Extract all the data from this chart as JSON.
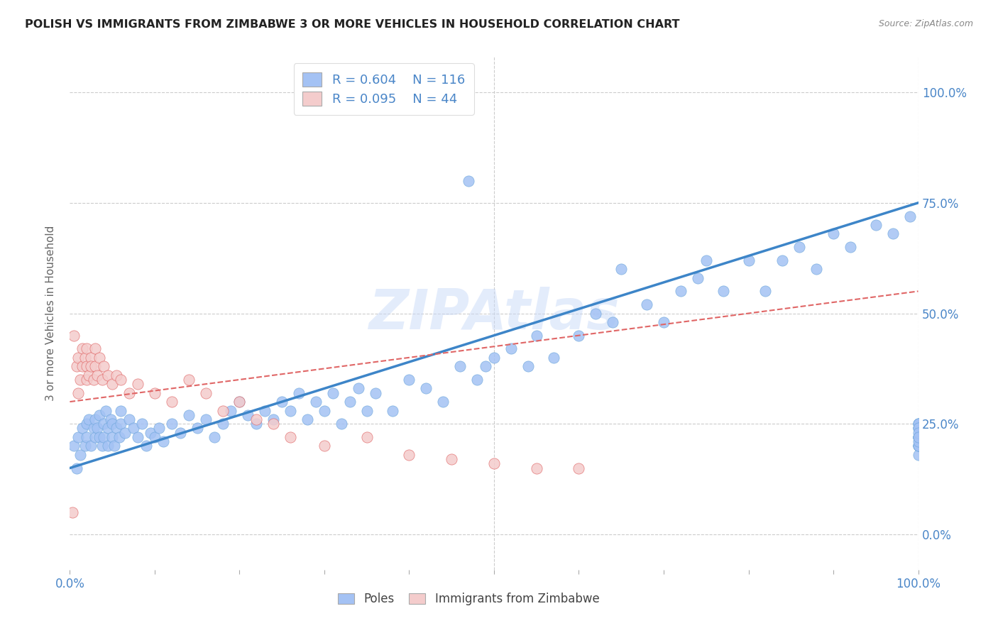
{
  "title": "POLISH VS IMMIGRANTS FROM ZIMBABWE 3 OR MORE VEHICLES IN HOUSEHOLD CORRELATION CHART",
  "source": "Source: ZipAtlas.com",
  "ylabel": "3 or more Vehicles in Household",
  "xlim": [
    0,
    100
  ],
  "ylim": [
    -8,
    108
  ],
  "x_ticks": [
    0,
    10,
    20,
    30,
    40,
    50,
    60,
    70,
    80,
    90,
    100
  ],
  "x_tick_labels_show": [
    "0.0%",
    "",
    "",
    "",
    "",
    "",
    "",
    "",
    "",
    "",
    "100.0%"
  ],
  "y_ticks_right": [
    0,
    25,
    50,
    75,
    100
  ],
  "y_tick_labels_right": [
    "0.0%",
    "25.0%",
    "50.0%",
    "75.0%",
    "100.0%"
  ],
  "poles_r": "0.604",
  "poles_n": "116",
  "zimbabwe_r": "0.095",
  "zimbabwe_n": "44",
  "poles_color": "#a4c2f4",
  "zimbabwe_color": "#f4cccc",
  "poles_edge": "#6fa8dc",
  "zimbabwe_edge": "#e06666",
  "regression_poles_color": "#3d85c8",
  "regression_zimbabwe_color": "#e06666",
  "watermark_color": "#c9daf8",
  "background_color": "#ffffff",
  "grid_color": "#cccccc",
  "poles_reg_x0": 0,
  "poles_reg_y0": 15,
  "poles_reg_x1": 100,
  "poles_reg_y1": 75,
  "zimb_reg_x0": 0,
  "zimb_reg_y0": 30,
  "zimb_reg_x1": 100,
  "zimb_reg_y1": 55,
  "poles_x": [
    0.5,
    0.8,
    1.0,
    1.2,
    1.5,
    1.8,
    2.0,
    2.0,
    2.2,
    2.5,
    2.8,
    3.0,
    3.0,
    3.2,
    3.5,
    3.5,
    3.8,
    4.0,
    4.0,
    4.2,
    4.5,
    4.5,
    4.8,
    5.0,
    5.0,
    5.2,
    5.5,
    5.8,
    6.0,
    6.0,
    6.5,
    7.0,
    7.5,
    8.0,
    8.5,
    9.0,
    9.5,
    10.0,
    10.5,
    11.0,
    12.0,
    13.0,
    14.0,
    15.0,
    16.0,
    17.0,
    18.0,
    19.0,
    20.0,
    21.0,
    22.0,
    23.0,
    24.0,
    25.0,
    26.0,
    27.0,
    28.0,
    29.0,
    30.0,
    31.0,
    32.0,
    33.0,
    34.0,
    35.0,
    36.0,
    38.0,
    40.0,
    42.0,
    44.0,
    46.0,
    47.0,
    48.0,
    49.0,
    50.0,
    52.0,
    54.0,
    55.0,
    57.0,
    60.0,
    62.0,
    64.0,
    65.0,
    68.0,
    70.0,
    72.0,
    74.0,
    75.0,
    77.0,
    80.0,
    82.0,
    84.0,
    86.0,
    88.0,
    90.0,
    92.0,
    95.0,
    97.0,
    99.0,
    100.0,
    100.0,
    100.0,
    100.0,
    100.0,
    100.0,
    100.0,
    100.0,
    100.0,
    100.0,
    100.0,
    100.0,
    100.0,
    100.0,
    100.0,
    100.0,
    100.0,
    100.0
  ],
  "poles_y": [
    20,
    15,
    22,
    18,
    24,
    20,
    25,
    22,
    26,
    20,
    24,
    22,
    26,
    24,
    22,
    27,
    20,
    25,
    22,
    28,
    20,
    24,
    26,
    22,
    25,
    20,
    24,
    22,
    25,
    28,
    23,
    26,
    24,
    22,
    25,
    20,
    23,
    22,
    24,
    21,
    25,
    23,
    27,
    24,
    26,
    22,
    25,
    28,
    30,
    27,
    25,
    28,
    26,
    30,
    28,
    32,
    26,
    30,
    28,
    32,
    25,
    30,
    33,
    28,
    32,
    28,
    35,
    33,
    30,
    38,
    80,
    35,
    38,
    40,
    42,
    38,
    45,
    40,
    45,
    50,
    48,
    60,
    52,
    48,
    55,
    58,
    62,
    55,
    62,
    55,
    62,
    65,
    60,
    68,
    65,
    70,
    68,
    72,
    25,
    20,
    22,
    25,
    18,
    20,
    22,
    24,
    20,
    22,
    24,
    25,
    22,
    24,
    20,
    21,
    23,
    22
  ],
  "zimb_x": [
    0.3,
    0.5,
    0.8,
    1.0,
    1.0,
    1.2,
    1.5,
    1.5,
    1.8,
    2.0,
    2.0,
    2.0,
    2.2,
    2.5,
    2.5,
    2.8,
    3.0,
    3.0,
    3.2,
    3.5,
    3.8,
    4.0,
    4.5,
    5.0,
    5.5,
    6.0,
    7.0,
    8.0,
    10.0,
    12.0,
    14.0,
    16.0,
    18.0,
    20.0,
    22.0,
    24.0,
    26.0,
    30.0,
    35.0,
    40.0,
    45.0,
    50.0,
    55.0,
    60.0
  ],
  "zimb_y": [
    5,
    45,
    38,
    32,
    40,
    35,
    42,
    38,
    40,
    35,
    38,
    42,
    36,
    40,
    38,
    35,
    38,
    42,
    36,
    40,
    35,
    38,
    36,
    34,
    36,
    35,
    32,
    34,
    32,
    30,
    35,
    32,
    28,
    30,
    26,
    25,
    22,
    20,
    22,
    18,
    17,
    16,
    15,
    15
  ]
}
